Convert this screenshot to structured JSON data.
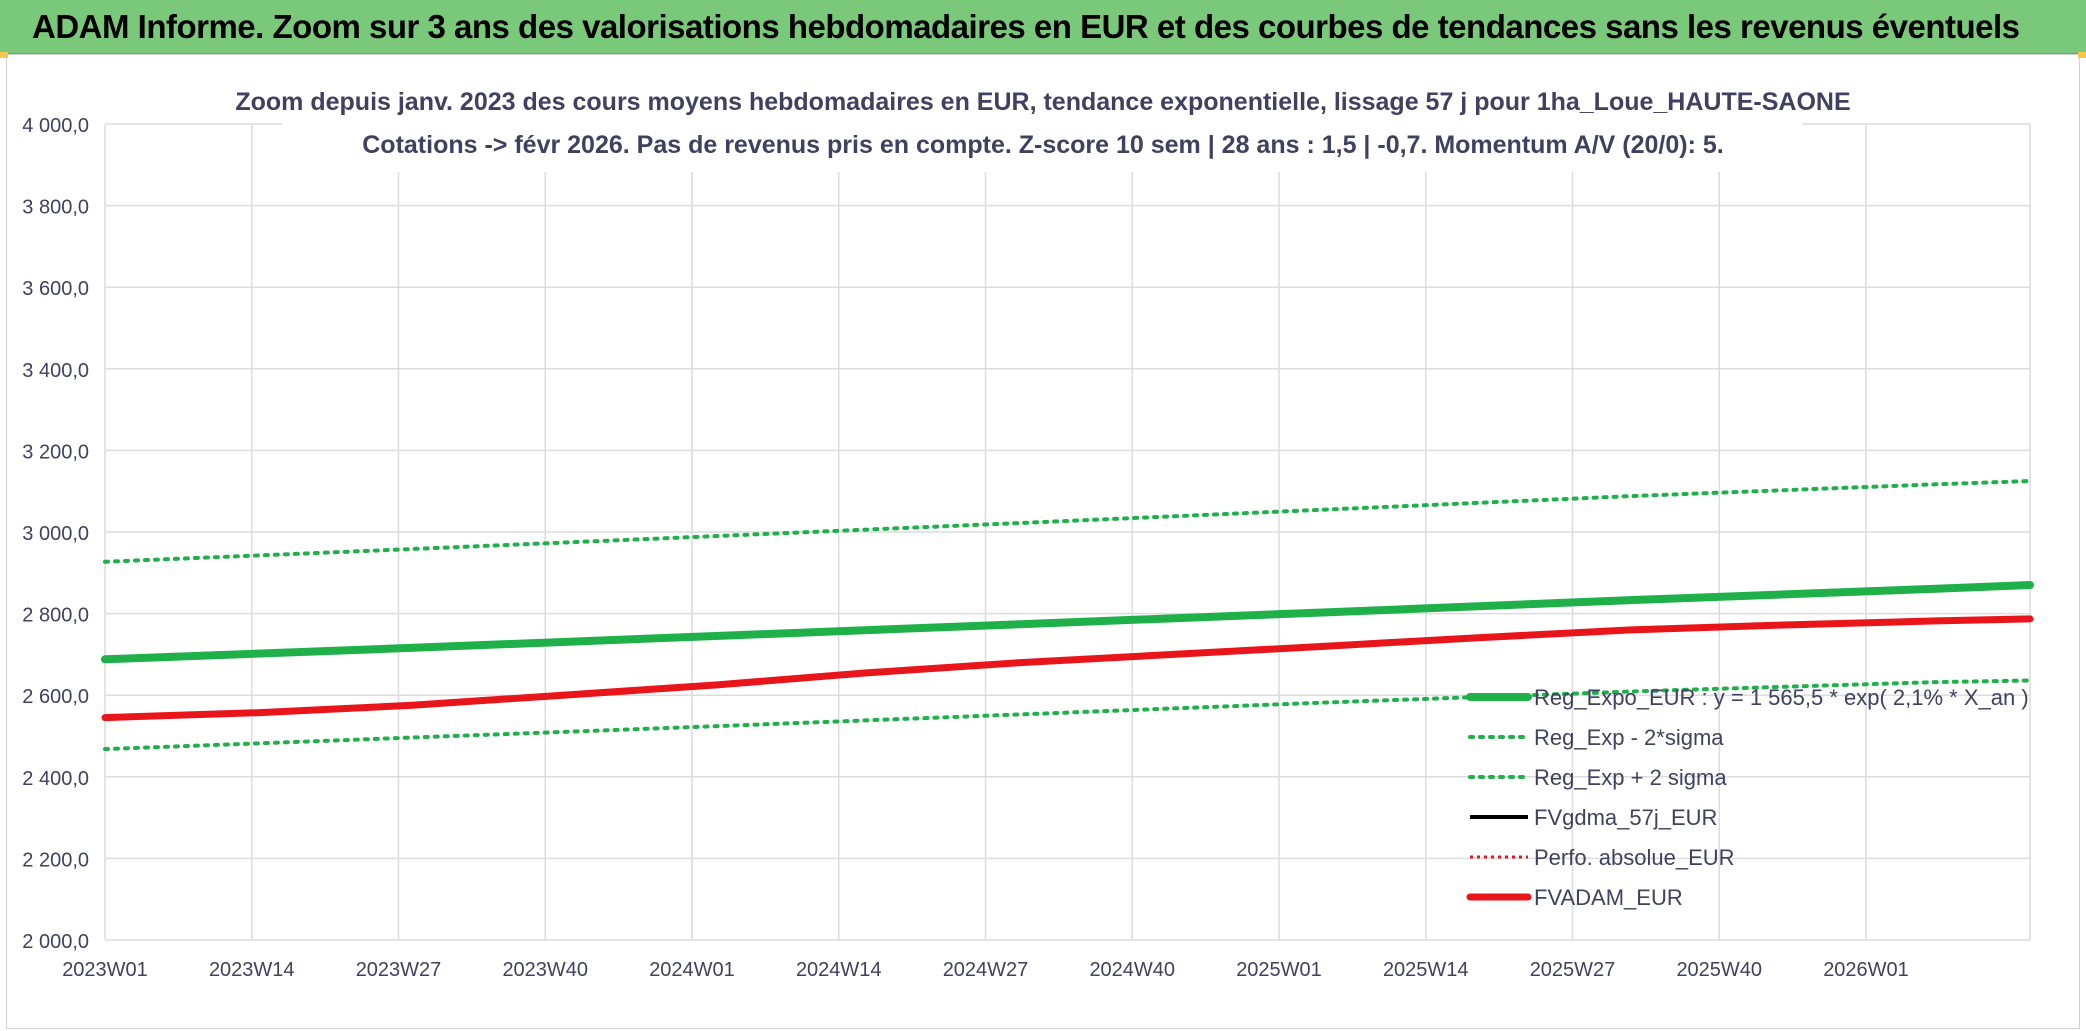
{
  "banner": {
    "title": "ADAM Informe. Zoom sur 3 ans des valorisations hebdomadaires en EUR et des courbes de tendances sans les revenus éventuels"
  },
  "colors": {
    "banner_bg": "#7ac97a",
    "green": "#1fb04a",
    "green_dot": "#1fb04a",
    "red": "#e8151b",
    "black": "#000000",
    "grid": "#dcdcdc",
    "text": "#404060"
  },
  "chart_data": {
    "type": "line",
    "title_line1": "Zoom depuis janv. 2023 des cours moyens hebdomadaires en EUR, tendance exponentielle, lissage 57 j pour 1ha_Loue_HAUTE-SAONE",
    "title_line2": "Cotations -> févr 2026. Pas de revenus pris en compte. Z-score 10 sem | 28 ans : 1,5 | -0,7. Momentum A/V (20/0): 5.",
    "ylim": [
      2000,
      4000
    ],
    "yticks": [
      4000,
      3800,
      3600,
      3400,
      3200,
      3000,
      2800,
      2600,
      2400,
      2200,
      2000
    ],
    "ytick_labels": [
      "4 000,0",
      "3 800,0",
      "3 600,0",
      "3 400,0",
      "3 200,0",
      "3 000,0",
      "2 800,0",
      "2 600,0",
      "2 400,0",
      "2 200,0",
      "2 000,0"
    ],
    "x_categories": [
      "2023W01",
      "2023W14",
      "2023W27",
      "2023W40",
      "2024W01",
      "2024W14",
      "2024W27",
      "2024W40",
      "2025W01",
      "2025W14",
      "2025W27",
      "2025W40",
      "2026W01"
    ],
    "x_range_weeks": [
      0,
      164
    ],
    "series": [
      {
        "name": "Reg_Expo_EUR : y = 1 565,5 * exp( 2,1% *  X_an )",
        "style": "green-thick",
        "x": [
          0,
          26,
          52,
          78,
          104,
          130,
          156,
          164
        ],
        "values": [
          2688,
          2716,
          2745,
          2774,
          2803,
          2833,
          2861,
          2870
        ]
      },
      {
        "name": "Reg_Exp - 2*sigma",
        "style": "green-dotted",
        "x": [
          0,
          26,
          52,
          78,
          104,
          130,
          156,
          164
        ],
        "values": [
          2468,
          2496,
          2524,
          2553,
          2582,
          2609,
          2632,
          2636
        ]
      },
      {
        "name": "Reg_Exp + 2 sigma",
        "style": "green-dotted",
        "x": [
          0,
          26,
          52,
          78,
          104,
          130,
          156,
          164
        ],
        "values": [
          2927,
          2958,
          2990,
          3022,
          3055,
          3088,
          3117,
          3125
        ]
      },
      {
        "name": "FVgdma_57j_EUR",
        "style": "black-thin",
        "x": [],
        "values": []
      },
      {
        "name": "Perfo. absolue_EUR",
        "style": "red-dotted",
        "x": [],
        "values": []
      },
      {
        "name": "FVADAM_EUR",
        "style": "red-thick",
        "x": [
          0,
          13,
          26,
          39,
          52,
          65,
          78,
          91,
          104,
          117,
          130,
          143,
          156,
          164
        ],
        "values": [
          2545,
          2557,
          2575,
          2600,
          2625,
          2655,
          2680,
          2700,
          2720,
          2741,
          2760,
          2772,
          2782,
          2787
        ]
      }
    ],
    "legend_position": "bottom-right"
  }
}
